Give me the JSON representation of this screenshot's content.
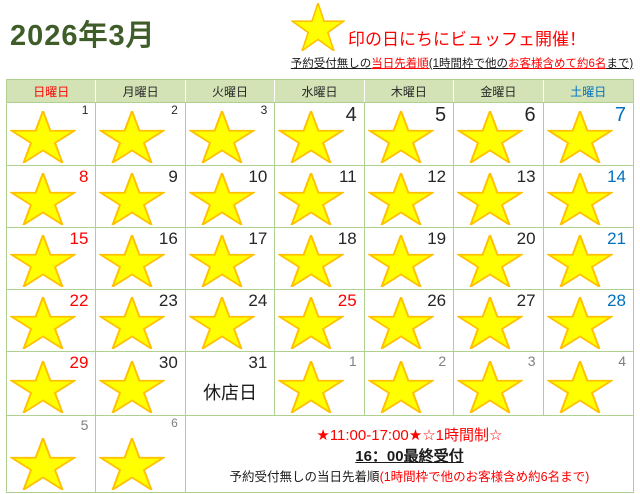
{
  "palette": {
    "red": "#ff0000",
    "blue": "#0070c0",
    "dark": "#262626",
    "gray": "#7f7f7f",
    "black": "#1a1a1a",
    "title_green": "#3f5d28",
    "header_bg": "#d3e3b6",
    "grid_border": "#aed190",
    "star_fill": "#ffff00",
    "star_stroke": "#ffc000"
  },
  "header": {
    "title": "2026年3月",
    "legend_title": "印の日にちにビュッフェ開催！",
    "legend_note_segments": [
      {
        "text": "予約受付無しの",
        "color": "black"
      },
      {
        "text": "当日先着順",
        "color": "red"
      },
      {
        "text": "(1時間枠で他の",
        "color": "black"
      },
      {
        "text": "お客様含めて約6名",
        "color": "red"
      },
      {
        "text": "まで)",
        "color": "black"
      }
    ]
  },
  "calendar": {
    "weekdays": [
      {
        "label": "日曜日",
        "color": "red"
      },
      {
        "label": "月曜日",
        "color": "dark"
      },
      {
        "label": "火曜日",
        "color": "dark"
      },
      {
        "label": "水曜日",
        "color": "dark"
      },
      {
        "label": "木曜日",
        "color": "dark"
      },
      {
        "label": "金曜日",
        "color": "dark"
      },
      {
        "label": "土曜日",
        "color": "blue"
      }
    ],
    "closed_label": "休店日",
    "weeks": [
      [
        {
          "day": "1",
          "color": "dark",
          "size": "sm",
          "star": true
        },
        {
          "day": "2",
          "color": "dark",
          "size": "sm",
          "star": true
        },
        {
          "day": "3",
          "color": "dark",
          "size": "sm",
          "star": true
        },
        {
          "day": "4",
          "color": "dark",
          "size": "xl",
          "star": true
        },
        {
          "day": "5",
          "color": "dark",
          "size": "xl",
          "star": true
        },
        {
          "day": "6",
          "color": "dark",
          "size": "xl",
          "star": true
        },
        {
          "day": "7",
          "color": "blue",
          "size": "xl",
          "star": true
        }
      ],
      [
        {
          "day": "8",
          "color": "red",
          "size": "lg",
          "star": true
        },
        {
          "day": "9",
          "color": "dark",
          "size": "lg",
          "star": true
        },
        {
          "day": "10",
          "color": "dark",
          "size": "lg",
          "star": true
        },
        {
          "day": "11",
          "color": "dark",
          "size": "lg",
          "star": true
        },
        {
          "day": "12",
          "color": "dark",
          "size": "lg",
          "star": true
        },
        {
          "day": "13",
          "color": "dark",
          "size": "lg",
          "star": true
        },
        {
          "day": "14",
          "color": "blue",
          "size": "lg",
          "star": true
        }
      ],
      [
        {
          "day": "15",
          "color": "red",
          "size": "lg",
          "star": true
        },
        {
          "day": "16",
          "color": "dark",
          "size": "lg",
          "star": true
        },
        {
          "day": "17",
          "color": "dark",
          "size": "lg",
          "star": true
        },
        {
          "day": "18",
          "color": "dark",
          "size": "lg",
          "star": true
        },
        {
          "day": "19",
          "color": "dark",
          "size": "lg",
          "star": true
        },
        {
          "day": "20",
          "color": "dark",
          "size": "lg",
          "star": true
        },
        {
          "day": "21",
          "color": "blue",
          "size": "lg",
          "star": true
        }
      ],
      [
        {
          "day": "22",
          "color": "red",
          "size": "lg",
          "star": true
        },
        {
          "day": "23",
          "color": "dark",
          "size": "lg",
          "star": true
        },
        {
          "day": "24",
          "color": "dark",
          "size": "lg",
          "star": true
        },
        {
          "day": "25",
          "color": "red",
          "size": "lg",
          "star": true
        },
        {
          "day": "26",
          "color": "dark",
          "size": "lg",
          "star": true
        },
        {
          "day": "27",
          "color": "dark",
          "size": "lg",
          "star": true
        },
        {
          "day": "28",
          "color": "blue",
          "size": "lg",
          "star": true
        }
      ],
      [
        {
          "day": "29",
          "color": "red",
          "size": "lg",
          "star": true
        },
        {
          "day": "30",
          "color": "dark",
          "size": "lg",
          "star": true
        },
        {
          "day": "31",
          "color": "dark",
          "size": "lg",
          "star": false,
          "closed": true
        },
        {
          "day": "1",
          "color": "gray",
          "size": "md",
          "star": true
        },
        {
          "day": "2",
          "color": "gray",
          "size": "md",
          "star": true
        },
        {
          "day": "3",
          "color": "gray",
          "size": "md",
          "star": true
        },
        {
          "day": "4",
          "color": "gray",
          "size": "md",
          "star": true
        }
      ],
      [
        {
          "day": "5",
          "color": "gray",
          "size": "md",
          "star": true
        },
        {
          "day": "6",
          "color": "gray",
          "size": "sm",
          "star": true
        }
      ]
    ]
  },
  "footer": {
    "hours_line": "★11:00-17:00★☆1時間制☆",
    "last_call_line": "16：00最終受付",
    "note_segments": [
      {
        "text": "予約受付無しの当日先着順",
        "color": "black"
      },
      {
        "text": "(1時間枠で他のお客様含め約6名まで)",
        "color": "red"
      }
    ]
  }
}
